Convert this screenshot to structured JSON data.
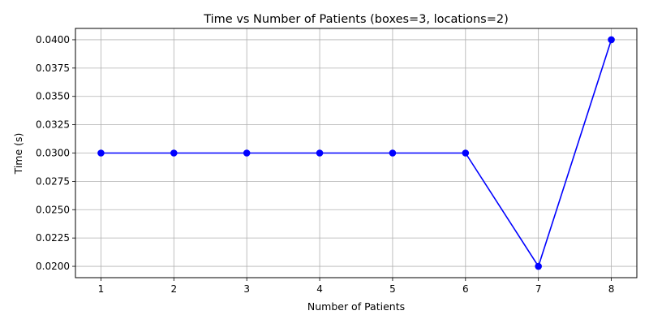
{
  "chart_data": {
    "type": "line",
    "title": "Time vs Number of Patients (boxes=3, locations=2)",
    "xlabel": "Number of Patients",
    "ylabel": "Time (s)",
    "x": [
      1,
      2,
      3,
      4,
      5,
      6,
      7,
      8
    ],
    "y": [
      0.03,
      0.03,
      0.03,
      0.03,
      0.03,
      0.03,
      0.02,
      0.04
    ],
    "xlim": [
      0.65,
      8.35
    ],
    "ylim": [
      0.019,
      0.041
    ],
    "xticks": [
      1,
      2,
      3,
      4,
      5,
      6,
      7,
      8
    ],
    "yticks": [
      0.02,
      0.0225,
      0.025,
      0.0275,
      0.03,
      0.0325,
      0.035,
      0.0375,
      0.04
    ],
    "ytick_labels": [
      "0.0200",
      "0.0225",
      "0.0250",
      "0.0275",
      "0.0300",
      "0.0325",
      "0.0350",
      "0.0375",
      "0.0400"
    ],
    "grid": true,
    "line_color": "#0000ff",
    "marker": "circle"
  }
}
